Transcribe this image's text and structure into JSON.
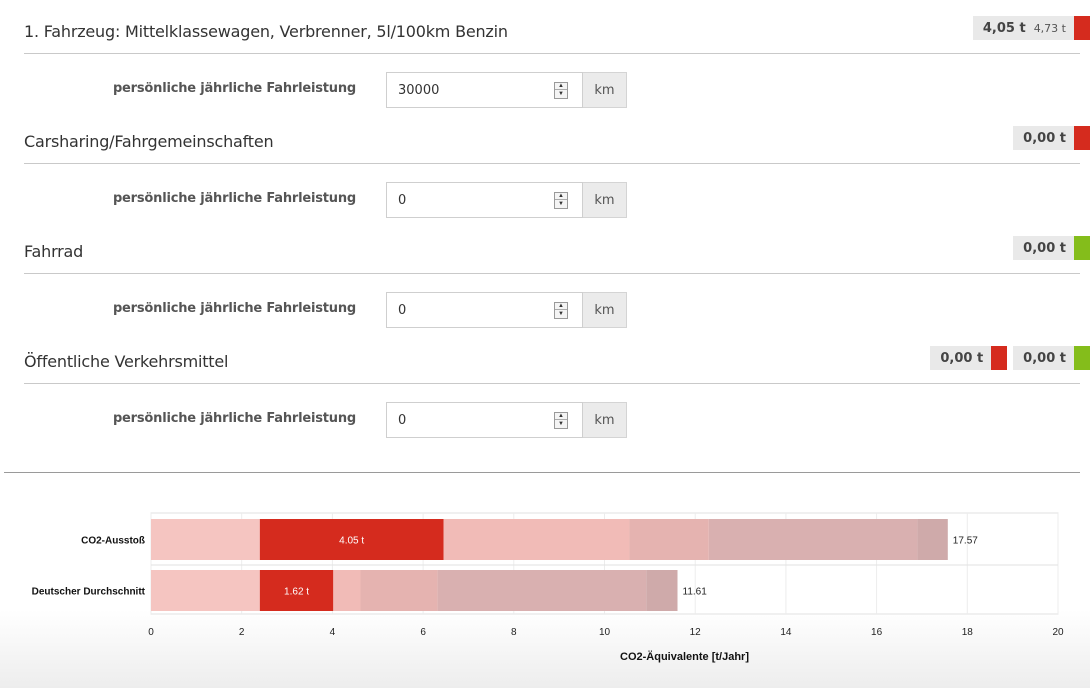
{
  "sections": [
    {
      "title": "1. Fahrzeug: Mittelklassewagen, Verbrenner, 5l/100km Benzin",
      "badges": [
        {
          "value": "4,05 t",
          "sub": "4,73 t",
          "color": "#d52b1e"
        }
      ],
      "row": {
        "label": "persönliche jährliche Fahrleistung",
        "value": "30000",
        "unit": "km"
      }
    },
    {
      "title": "Carsharing/Fahrgemeinschaften",
      "badges": [
        {
          "value": "0,00 t",
          "color": "#d52b1e"
        }
      ],
      "row": {
        "label": "persönliche jährliche Fahrleistung",
        "value": "0",
        "unit": "km"
      }
    },
    {
      "title": "Fahrrad",
      "badges": [
        {
          "value": "0,00 t",
          "color": "#84bd1b"
        }
      ],
      "row": {
        "label": "persönliche jährliche Fahrleistung",
        "value": "0",
        "unit": "km"
      }
    },
    {
      "title": "Öffentliche Verkehrsmittel",
      "badges": [
        {
          "value": "0,00 t",
          "color": "#d52b1e"
        },
        {
          "value": "0,00 t",
          "color": "#84bd1b"
        }
      ],
      "row": {
        "label": "persönliche jährliche Fahrleistung",
        "value": "0",
        "unit": "km"
      }
    }
  ],
  "icons": {
    "spinner_up": "spinner-up-arrow-icon",
    "spinner_down": "spinner-down-arrow-icon"
  },
  "chart_data": {
    "type": "bar",
    "orientation": "horizontal",
    "stacked": true,
    "categories": [
      "CO2-Ausstoß",
      "Deutscher Durchschnitt"
    ],
    "segments": [
      {
        "values": [
          2.4,
          4.05,
          4.1,
          1.75,
          4.6,
          0.67
        ],
        "colors": [
          "#f5c5c1",
          "#d52b1e",
          "#f1bbb7",
          "#e5b3b0",
          "#d9b0b0",
          "#cfaaaa"
        ],
        "label_index": 1,
        "label": "4.05 t",
        "total_label": "17.57"
      },
      {
        "values": [
          2.4,
          1.62,
          0.6,
          1.7,
          4.6,
          0.69
        ],
        "colors": [
          "#f5c5c1",
          "#d52b1e",
          "#f1bbb7",
          "#e5b3b0",
          "#d9b0b0",
          "#cfaaaa"
        ],
        "label_index": 1,
        "label": "1.62 t",
        "total_label": "11.61"
      }
    ],
    "xlabel": "CO2-Äquivalente [t/Jahr]",
    "xlim": [
      0,
      20
    ],
    "xticks": [
      0,
      2,
      4,
      6,
      8,
      10,
      12,
      14,
      16,
      18,
      20
    ],
    "grid": true
  }
}
